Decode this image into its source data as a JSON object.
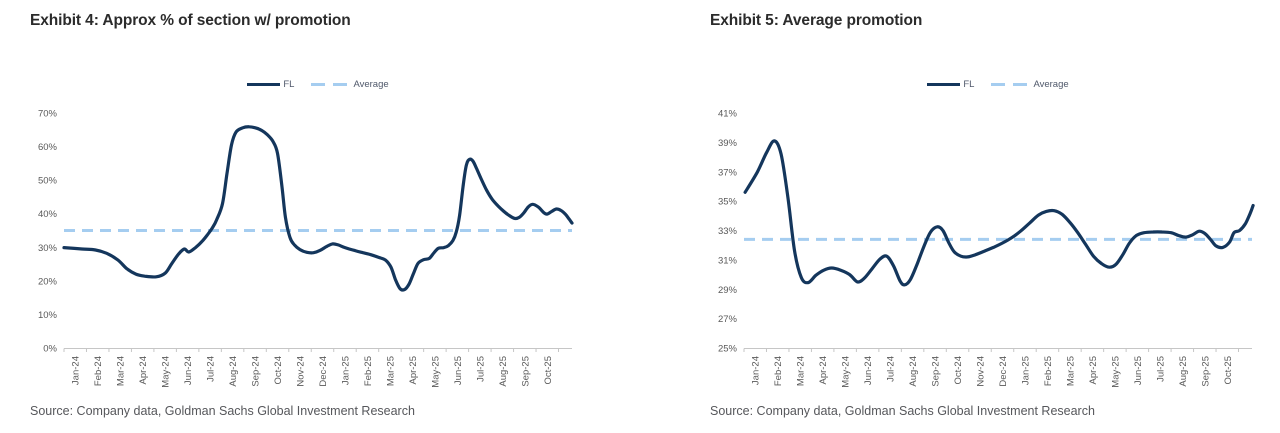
{
  "colors": {
    "fl_line": "#14365C",
    "average_line": "#A5CDF0",
    "axis": "#C6C6C6",
    "tick_text": "#595959",
    "title_text": "#2B2B2B",
    "source_text": "#56575B"
  },
  "chart_data": [
    {
      "type": "line",
      "title": "Exhibit 4: Approx % of section w/ promotion",
      "legend": [
        "FL",
        "Average"
      ],
      "legend_position": "top-center",
      "grid": false,
      "source": "Source: Company data, Goldman Sachs Global Investment Research",
      "categories": [
        "Jan-24",
        "Feb-24",
        "Mar-24",
        "Apr-24",
        "May-24",
        "Jun-24",
        "Jul-24",
        "Aug-24",
        "Sep-24",
        "Oct-24",
        "Nov-24",
        "Dec-24",
        "Jan-25",
        "Feb-25",
        "Mar-25",
        "Apr-25",
        "May-25",
        "Jun-25",
        "Jul-25",
        "Aug-25",
        "Sep-25",
        "Oct-25"
      ],
      "ylim": [
        0,
        70
      ],
      "ytick_step": 10,
      "ytick_suffix": "%",
      "average_value": 35,
      "series": [
        {
          "name": "FL",
          "points": [
            [
              -0.5,
              29.9
            ],
            [
              0.3,
              29.5
            ],
            [
              0.9,
              29.2
            ],
            [
              1.4,
              28.2
            ],
            [
              1.9,
              26.2
            ],
            [
              2.3,
              23.6
            ],
            [
              2.7,
              22.0
            ],
            [
              3.1,
              21.4
            ],
            [
              3.6,
              21.2
            ],
            [
              4.0,
              22.3
            ],
            [
              4.3,
              25.2
            ],
            [
              4.6,
              28.0
            ],
            [
              4.85,
              29.5
            ],
            [
              5.05,
              28.6
            ],
            [
              5.35,
              29.9
            ],
            [
              5.65,
              31.8
            ],
            [
              5.9,
              33.9
            ],
            [
              6.1,
              35.8
            ],
            [
              6.3,
              38.3
            ],
            [
              6.55,
              43.0
            ],
            [
              6.75,
              52.0
            ],
            [
              6.95,
              60.5
            ],
            [
              7.15,
              64.3
            ],
            [
              7.45,
              65.6
            ],
            [
              7.75,
              65.9
            ],
            [
              8.05,
              65.5
            ],
            [
              8.3,
              64.8
            ],
            [
              8.55,
              63.5
            ],
            [
              8.8,
              61.5
            ],
            [
              9.0,
              58.0
            ],
            [
              9.2,
              48.0
            ],
            [
              9.35,
              39.0
            ],
            [
              9.55,
              33.0
            ],
            [
              9.75,
              30.7
            ],
            [
              10.0,
              29.3
            ],
            [
              10.3,
              28.5
            ],
            [
              10.6,
              28.4
            ],
            [
              10.9,
              29.1
            ],
            [
              11.2,
              30.3
            ],
            [
              11.45,
              31.0
            ],
            [
              11.7,
              30.7
            ],
            [
              12.0,
              29.9
            ],
            [
              12.45,
              29.0
            ],
            [
              12.8,
              28.4
            ],
            [
              13.15,
              27.8
            ],
            [
              13.5,
              27.0
            ],
            [
              13.8,
              26.2
            ],
            [
              14.05,
              24.0
            ],
            [
              14.25,
              20.3
            ],
            [
              14.45,
              17.7
            ],
            [
              14.65,
              17.4
            ],
            [
              14.85,
              19.0
            ],
            [
              15.05,
              22.2
            ],
            [
              15.25,
              25.2
            ],
            [
              15.5,
              26.3
            ],
            [
              15.75,
              26.7
            ],
            [
              15.95,
              28.3
            ],
            [
              16.15,
              29.7
            ],
            [
              16.4,
              29.9
            ],
            [
              16.6,
              30.5
            ],
            [
              16.8,
              32.0
            ],
            [
              16.95,
              34.5
            ],
            [
              17.1,
              39.5
            ],
            [
              17.25,
              48.0
            ],
            [
              17.4,
              54.5
            ],
            [
              17.55,
              56.2
            ],
            [
              17.7,
              55.6
            ],
            [
              17.85,
              53.5
            ],
            [
              18.05,
              50.5
            ],
            [
              18.3,
              47.0
            ],
            [
              18.55,
              44.3
            ],
            [
              18.8,
              42.4
            ],
            [
              19.05,
              40.8
            ],
            [
              19.3,
              39.5
            ],
            [
              19.55,
              38.6
            ],
            [
              19.75,
              38.9
            ],
            [
              19.95,
              40.2
            ],
            [
              20.15,
              42.0
            ],
            [
              20.35,
              42.8
            ],
            [
              20.6,
              42.0
            ],
            [
              20.85,
              40.3
            ],
            [
              21.0,
              39.9
            ],
            [
              21.2,
              40.7
            ],
            [
              21.4,
              41.4
            ],
            [
              21.6,
              41.0
            ],
            [
              21.8,
              39.9
            ],
            [
              21.95,
              38.6
            ],
            [
              22.1,
              37.2
            ]
          ]
        }
      ]
    },
    {
      "type": "line",
      "title": "Exhibit 5: Average promotion",
      "legend": [
        "FL",
        "Average"
      ],
      "legend_position": "top-center",
      "grid": false,
      "source": "Source: Company data, Goldman Sachs Global Investment Research",
      "categories": [
        "Jan-24",
        "Feb-24",
        "Mar-24",
        "Apr-24",
        "May-24",
        "Jun-24",
        "Jul-24",
        "Aug-24",
        "Sep-24",
        "Oct-24",
        "Nov-24",
        "Dec-24",
        "Jan-25",
        "Feb-25",
        "Mar-25",
        "Apr-25",
        "May-25",
        "Jun-25",
        "Jul-25",
        "Aug-25",
        "Sep-25",
        "Oct-25"
      ],
      "ylim": [
        25,
        41
      ],
      "ytick_step": 2,
      "ytick_suffix": "%",
      "average_value": 32.4,
      "series": [
        {
          "name": "FL",
          "points": [
            [
              -0.45,
              35.6
            ],
            [
              0.1,
              37.0
            ],
            [
              0.5,
              38.3
            ],
            [
              0.85,
              39.1
            ],
            [
              1.15,
              38.2
            ],
            [
              1.45,
              35.3
            ],
            [
              1.75,
              31.6
            ],
            [
              2.05,
              29.8
            ],
            [
              2.35,
              29.45
            ],
            [
              2.7,
              29.95
            ],
            [
              3.05,
              30.3
            ],
            [
              3.4,
              30.45
            ],
            [
              3.8,
              30.3
            ],
            [
              4.2,
              30.0
            ],
            [
              4.55,
              29.5
            ],
            [
              4.85,
              29.75
            ],
            [
              5.2,
              30.4
            ],
            [
              5.55,
              31.05
            ],
            [
              5.85,
              31.25
            ],
            [
              6.15,
              30.6
            ],
            [
              6.45,
              29.55
            ],
            [
              6.65,
              29.3
            ],
            [
              6.9,
              29.65
            ],
            [
              7.2,
              30.7
            ],
            [
              7.5,
              31.9
            ],
            [
              7.8,
              32.9
            ],
            [
              8.1,
              33.25
            ],
            [
              8.35,
              33.0
            ],
            [
              8.6,
              32.2
            ],
            [
              8.85,
              31.55
            ],
            [
              9.15,
              31.25
            ],
            [
              9.45,
              31.2
            ],
            [
              9.8,
              31.35
            ],
            [
              10.2,
              31.6
            ],
            [
              10.6,
              31.85
            ],
            [
              11.0,
              32.15
            ],
            [
              11.4,
              32.5
            ],
            [
              11.8,
              32.95
            ],
            [
              12.2,
              33.5
            ],
            [
              12.6,
              34.05
            ],
            [
              12.95,
              34.3
            ],
            [
              13.3,
              34.35
            ],
            [
              13.65,
              34.1
            ],
            [
              14.0,
              33.55
            ],
            [
              14.35,
              32.85
            ],
            [
              14.7,
              32.05
            ],
            [
              15.05,
              31.25
            ],
            [
              15.4,
              30.75
            ],
            [
              15.75,
              30.5
            ],
            [
              16.05,
              30.7
            ],
            [
              16.35,
              31.35
            ],
            [
              16.65,
              32.15
            ],
            [
              16.95,
              32.65
            ],
            [
              17.3,
              32.85
            ],
            [
              17.7,
              32.9
            ],
            [
              18.1,
              32.9
            ],
            [
              18.5,
              32.85
            ],
            [
              18.85,
              32.65
            ],
            [
              19.15,
              32.55
            ],
            [
              19.45,
              32.7
            ],
            [
              19.75,
              32.95
            ],
            [
              20.0,
              32.8
            ],
            [
              20.25,
              32.4
            ],
            [
              20.5,
              31.95
            ],
            [
              20.8,
              31.85
            ],
            [
              21.1,
              32.2
            ],
            [
              21.3,
              32.85
            ],
            [
              21.55,
              33.0
            ],
            [
              21.8,
              33.45
            ],
            [
              22.0,
              34.1
            ],
            [
              22.15,
              34.7
            ]
          ]
        }
      ]
    }
  ]
}
